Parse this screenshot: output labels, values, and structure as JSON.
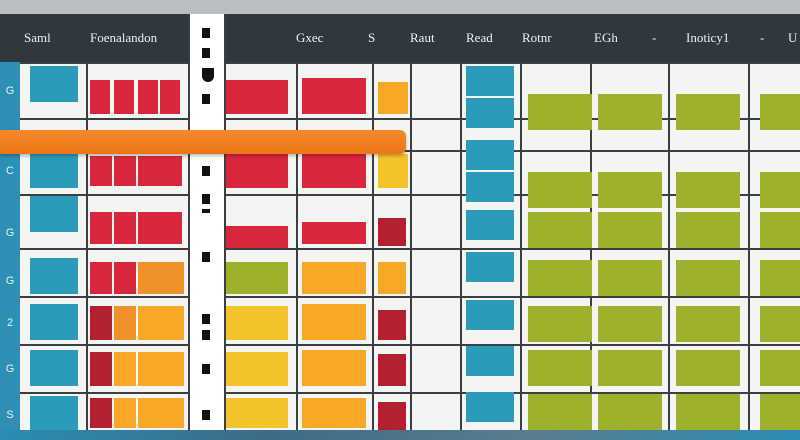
{
  "header": {
    "items": [
      {
        "label": "Saml"
      },
      {
        "label": "Foenalandon"
      },
      {
        "label": "Gxec"
      },
      {
        "label": "S"
      },
      {
        "label": "Raut"
      },
      {
        "label": "Read"
      },
      {
        "label": "Rotnr"
      },
      {
        "label": "EGh"
      },
      {
        "label": "-"
      },
      {
        "label": "Inoticy1"
      },
      {
        "label": "-"
      },
      {
        "label": "U"
      }
    ]
  },
  "rail": {
    "labels": [
      "G",
      "C",
      "G",
      "G",
      "2",
      "G",
      "S"
    ]
  },
  "colors": {
    "teal": "#2a9bb8",
    "red": "#d8263d",
    "crimson": "#b3202e",
    "orange": "#f0922a",
    "amber": "#f7a826",
    "yellow": "#f4c22a",
    "olive": "#9fb12c",
    "accent_bar": "#f07d1e"
  }
}
